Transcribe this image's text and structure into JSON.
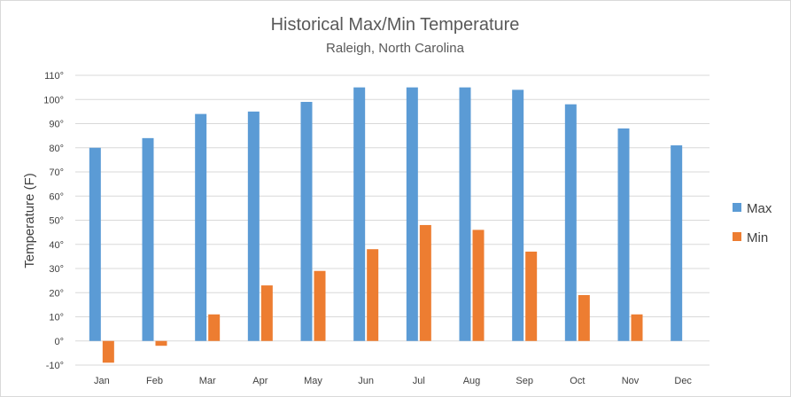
{
  "chart_data": {
    "type": "bar",
    "title": "Historical Max/Min Temperature",
    "subtitle": "Raleigh, North Carolina",
    "ylabel": "Temperature (F)",
    "xlabel": "",
    "ylim": [
      -10,
      110
    ],
    "yticks": [
      -10,
      0,
      10,
      20,
      30,
      40,
      50,
      60,
      70,
      80,
      90,
      100,
      110
    ],
    "ytick_labels": [
      "-10°",
      "0°",
      "10°",
      "20°",
      "30°",
      "40°",
      "50°",
      "60°",
      "70°",
      "80°",
      "90°",
      "100°",
      "110°"
    ],
    "categories": [
      "Jan",
      "Feb",
      "Mar",
      "Apr",
      "May",
      "Jun",
      "Jul",
      "Aug",
      "Sep",
      "Oct",
      "Nov",
      "Dec"
    ],
    "grid": true,
    "legend_position": "right",
    "series": [
      {
        "name": "Max",
        "color": "#5b9bd5",
        "values": [
          80,
          84,
          94,
          95,
          99,
          105,
          105,
          105,
          104,
          98,
          88,
          81
        ]
      },
      {
        "name": "Min",
        "color": "#ed7d31",
        "values": [
          -9,
          -2,
          11,
          23,
          29,
          38,
          48,
          46,
          37,
          19,
          11,
          0
        ]
      }
    ]
  }
}
